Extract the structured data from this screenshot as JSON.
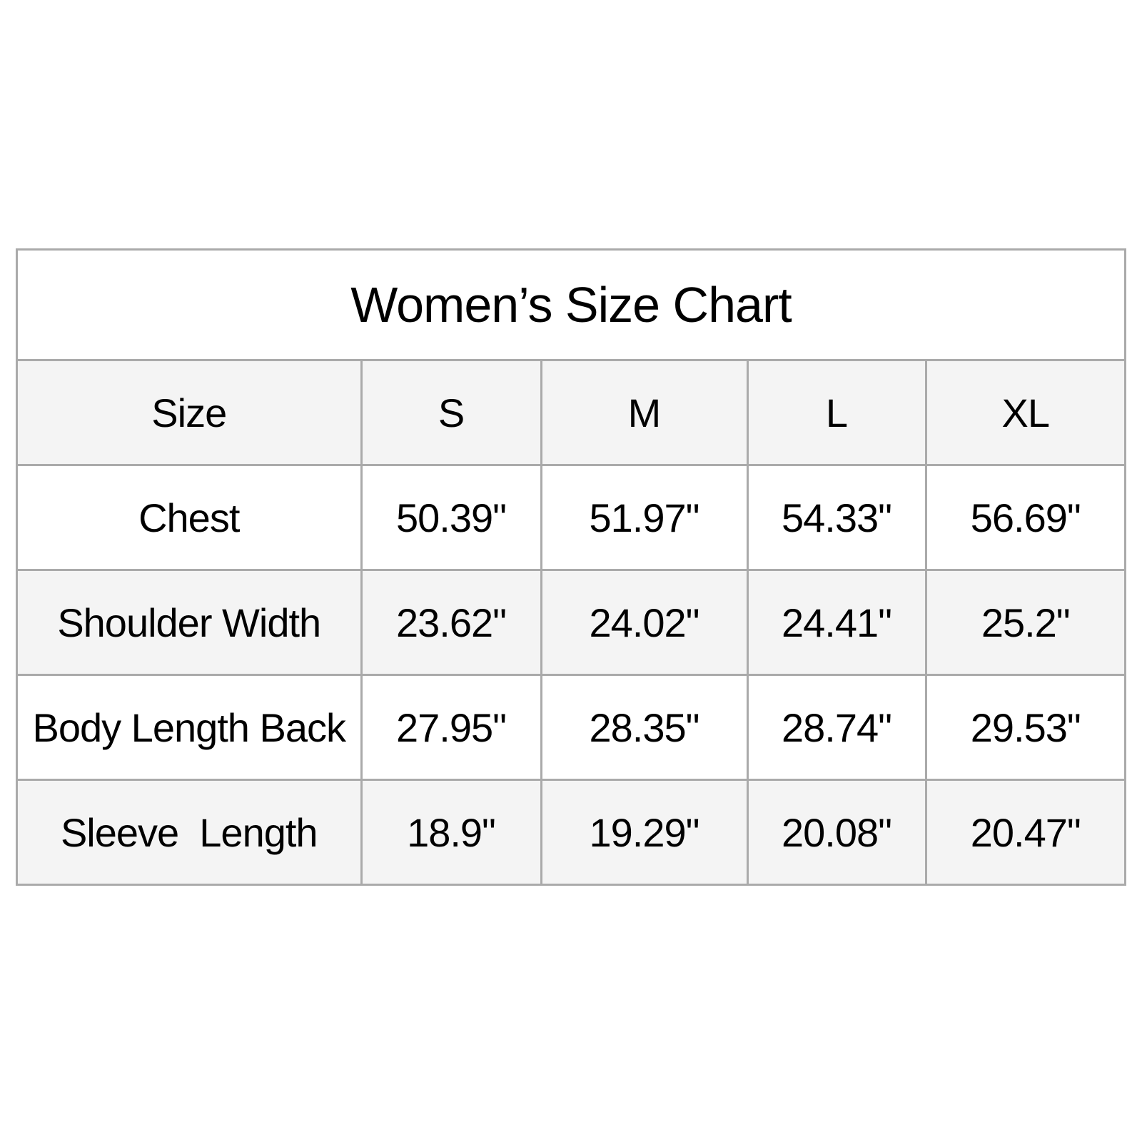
{
  "title": "Women’s Size Chart",
  "table": {
    "header": [
      "Size",
      "S",
      "M",
      "L",
      "XL"
    ],
    "rows": [
      {
        "label": "Chest",
        "values": [
          "50.39\"",
          "51.97\"",
          "54.33\"",
          "56.69\""
        ]
      },
      {
        "label": "Shoulder Width",
        "values": [
          "23.62\"",
          "24.02\"",
          "24.41\"",
          "25.2\""
        ]
      },
      {
        "label": "Body Length Back",
        "values": [
          "27.95\"",
          "28.35\"",
          "28.74\"",
          "29.53\""
        ]
      },
      {
        "label": "Sleeve  Length",
        "values": [
          "18.9\"",
          "19.29\"",
          "20.08\"",
          "20.47\""
        ]
      }
    ]
  },
  "colors": {
    "border": "#aaaaaa",
    "shaded_row": "#f4f4f4"
  }
}
